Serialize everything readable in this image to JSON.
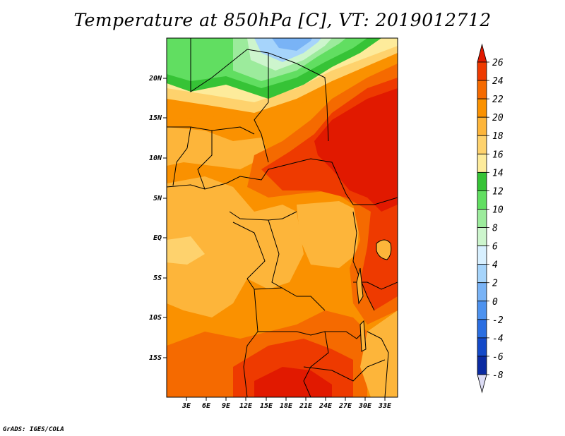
{
  "title": "Temperature at 850hPa [C], VT: 2019012712",
  "footer": "GrADS: IGES/COLA",
  "map": {
    "variable": "Temperature",
    "level": "850hPa",
    "units": "C",
    "valid_time": "2019012712",
    "lat_labels": [
      "20N",
      "15N",
      "10N",
      "5N",
      "EQ",
      "5S",
      "10S",
      "15S"
    ],
    "lon_labels": [
      "3E",
      "6E",
      "9E",
      "12E",
      "15E",
      "18E",
      "21E",
      "24E",
      "27E",
      "30E",
      "33E"
    ]
  },
  "colorbar": {
    "labels": [
      "26",
      "24",
      "22",
      "20",
      "18",
      "16",
      "14",
      "12",
      "10",
      "8",
      "6",
      "4",
      "2",
      "0",
      "-2",
      "-4",
      "-6",
      "-8"
    ],
    "colors": [
      "#e11900",
      "#ee3a00",
      "#f56a00",
      "#fa9100",
      "#fdb53a",
      "#fed26d",
      "#fdeb9b",
      "#36c336",
      "#61de61",
      "#9ceb9c",
      "#cdf5cd",
      "#d8f0ff",
      "#a6d4fb",
      "#79b3f6",
      "#4d92ef",
      "#2a6ee1",
      "#1349c8",
      "#0a2aa1",
      "#05136d"
    ]
  }
}
